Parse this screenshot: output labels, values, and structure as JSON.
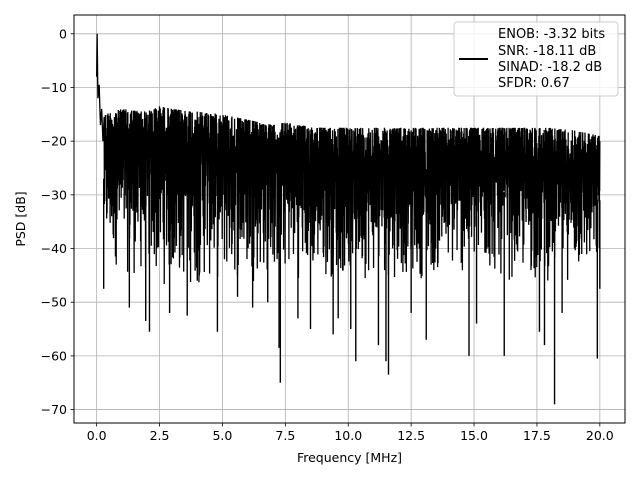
{
  "chart_data": {
    "type": "line",
    "title": "",
    "xlabel": "Frequency [MHz]",
    "ylabel": "PSD [dB]",
    "xlim": [
      -0.9,
      21.0
    ],
    "ylim": [
      -72.5,
      3.5
    ],
    "x_ticks": [
      0.0,
      2.5,
      5.0,
      7.5,
      10.0,
      12.5,
      15.0,
      17.5,
      20.0
    ],
    "x_tick_labels": [
      "0.0",
      "2.5",
      "5.0",
      "7.5",
      "10.0",
      "12.5",
      "15.0",
      "17.5",
      "20.0"
    ],
    "y_ticks": [
      0,
      -10,
      -20,
      -30,
      -40,
      -50,
      -60,
      -70
    ],
    "y_tick_labels": [
      "0",
      "−10",
      "−20",
      "−30",
      "−40",
      "−50",
      "−60",
      "−70"
    ],
    "grid": true,
    "legend_position": "top-right",
    "line_color": "#000000",
    "legend_lines": [
      "ENOB: -3.32 bits",
      "SNR: -18.11 dB",
      "SINAD: -18.2 dB",
      "SFDR: 0.67"
    ],
    "series": [
      {
        "x_range": [
          0.0,
          20.0
        ],
        "peak": {
          "x": 0.02,
          "y": 0.0
        },
        "near_dc": [
          [
            0.0,
            -8.0
          ],
          [
            0.05,
            -12.0
          ],
          [
            0.1,
            -9.5
          ],
          [
            0.15,
            -17.0
          ],
          [
            0.2,
            -14.0
          ],
          [
            0.25,
            -20.0
          ],
          [
            0.3,
            -15.5
          ]
        ],
        "upper_envelope": [
          [
            0.3,
            -15
          ],
          [
            1.0,
            -14
          ],
          [
            2.0,
            -14.5
          ],
          [
            2.5,
            -13.5
          ],
          [
            3.0,
            -14
          ],
          [
            4.0,
            -14.5
          ],
          [
            5.0,
            -15
          ],
          [
            6.0,
            -16
          ],
          [
            7.0,
            -17
          ],
          [
            7.5,
            -16.5
          ],
          [
            8.0,
            -17
          ],
          [
            9.0,
            -17.5
          ],
          [
            10.0,
            -17.5
          ],
          [
            11.0,
            -17.5
          ],
          [
            12.0,
            -17.5
          ],
          [
            13.0,
            -17.5
          ],
          [
            14.0,
            -17.5
          ],
          [
            15.0,
            -17.5
          ],
          [
            16.0,
            -17.5
          ],
          [
            17.0,
            -17.5
          ],
          [
            18.0,
            -17.5
          ],
          [
            19.0,
            -18
          ],
          [
            20.0,
            -19
          ]
        ],
        "lower_envelope": [
          [
            0.3,
            -42
          ],
          [
            1.0,
            -45
          ],
          [
            2.0,
            -47
          ],
          [
            3.0,
            -48
          ],
          [
            5.0,
            -47
          ],
          [
            7.0,
            -46
          ],
          [
            10.0,
            -46
          ],
          [
            12.5,
            -46
          ],
          [
            15.0,
            -46
          ],
          [
            17.5,
            -47
          ],
          [
            20.0,
            -46
          ]
        ],
        "deep_dips": [
          [
            0.28,
            -47.5
          ],
          [
            1.3,
            -51
          ],
          [
            1.95,
            -53.5
          ],
          [
            2.1,
            -55.5
          ],
          [
            2.9,
            -52
          ],
          [
            3.6,
            -52.5
          ],
          [
            4.0,
            -46
          ],
          [
            4.8,
            -55.5
          ],
          [
            5.6,
            -49
          ],
          [
            6.2,
            -51
          ],
          [
            6.8,
            -50
          ],
          [
            7.25,
            -58.5
          ],
          [
            7.3,
            -65
          ],
          [
            8.0,
            -53
          ],
          [
            8.5,
            -55
          ],
          [
            9.4,
            -56
          ],
          [
            9.6,
            -53
          ],
          [
            10.1,
            -55
          ],
          [
            10.3,
            -61
          ],
          [
            11.2,
            -58
          ],
          [
            11.5,
            -61
          ],
          [
            11.6,
            -63.5
          ],
          [
            12.5,
            -52
          ],
          [
            13.1,
            -57
          ],
          [
            14.8,
            -60
          ],
          [
            15.1,
            -54
          ],
          [
            16.2,
            -60
          ],
          [
            17.6,
            -55.5
          ],
          [
            17.8,
            -58
          ],
          [
            18.2,
            -69
          ],
          [
            18.5,
            -52
          ],
          [
            19.9,
            -60.5
          ],
          [
            20.0,
            -47.5
          ]
        ]
      }
    ]
  }
}
